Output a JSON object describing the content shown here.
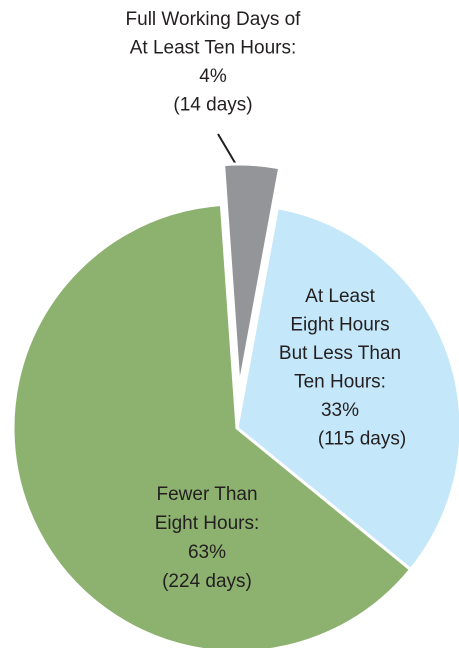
{
  "chart_data": {
    "type": "pie",
    "categories": [
      [
        "Full Working Days of",
        "At Least Ten Hours:"
      ],
      [
        "At Least",
        "Eight Hours",
        "But Less Than",
        "Ten Hours:"
      ],
      [
        "Fewer Than",
        "Eight Hours:"
      ]
    ],
    "values": [
      4,
      33,
      63
    ],
    "value_labels": [
      "4%",
      "33%",
      "63%"
    ],
    "day_labels": [
      "(14 days)",
      "(115 days)",
      "(224 days)"
    ],
    "colors": [
      "#939598",
      "#c4e7f9",
      "#8db16f"
    ],
    "exploded": [
      true,
      false,
      false
    ]
  }
}
